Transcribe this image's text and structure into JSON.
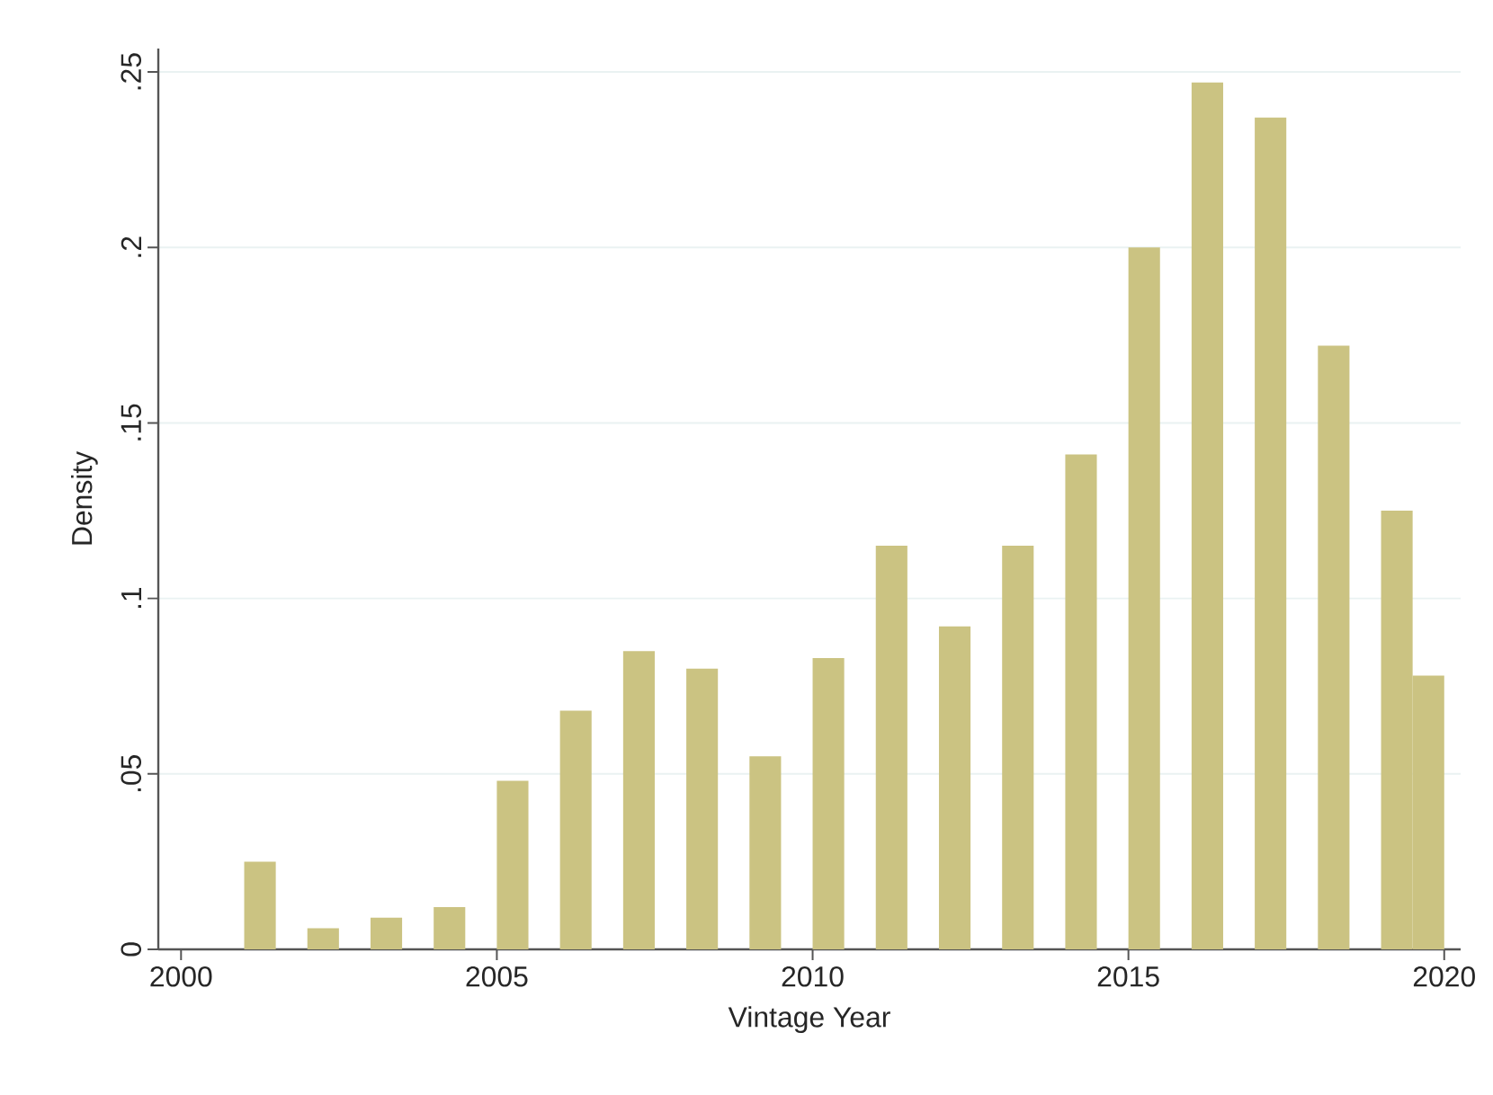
{
  "chart_data": {
    "type": "histogram",
    "xlabel": "Vintage Year",
    "ylabel": "Density",
    "bins": [
      2001,
      2001.5,
      2002,
      2002.5,
      2003,
      2003.5,
      2004,
      2004.5,
      2005,
      2005.5,
      2006,
      2006.5,
      2007,
      2007.5,
      2008,
      2008.5,
      2009,
      2009.5,
      2010,
      2010.5,
      2011,
      2011.5,
      2012,
      2012.5,
      2013,
      2013.5,
      2014,
      2014.5,
      2015,
      2015.5,
      2016,
      2016.5,
      2017,
      2017.5,
      2018,
      2018.5,
      2019,
      2019.5,
      2020
    ],
    "values": [
      0.025,
      0,
      0.006,
      0,
      0.009,
      0,
      0.012,
      0,
      0.048,
      0,
      0.068,
      0,
      0.085,
      0,
      0.08,
      0,
      0.055,
      0,
      0.083,
      0,
      0.115,
      0,
      0.092,
      0,
      0.115,
      0,
      0.141,
      0,
      0.2,
      0,
      0.247,
      0,
      0.237,
      0,
      0.172,
      0,
      0.125,
      0.078
    ],
    "color": "#cbc382",
    "xlim": [
      1999.64,
      2020.26
    ],
    "ylim": [
      0,
      0.2567
    ],
    "xticks": [
      2000,
      2005,
      2010,
      2015,
      2020
    ],
    "yticks": [
      {
        "value": 0,
        "label": "0"
      },
      {
        "value": 0.05,
        "label": ".05"
      },
      {
        "value": 0.1,
        "label": ".1"
      },
      {
        "value": 0.15,
        "label": ".15"
      },
      {
        "value": 0.2,
        "label": ".2"
      },
      {
        "value": 0.25,
        "label": ".25"
      }
    ],
    "grid": "y"
  }
}
